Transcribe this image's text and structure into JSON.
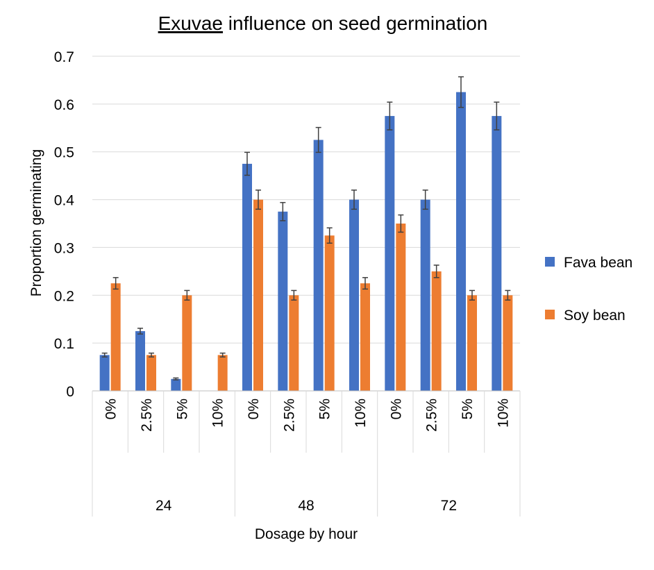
{
  "chart_data": {
    "type": "bar",
    "title": "Exuvae influence on seed germination",
    "title_misspelled_word": "Exuvae",
    "title_rest": " influence on seed germination",
    "xlabel": "Dosage by hour",
    "ylabel": "Proportion germinating",
    "ylim": [
      0,
      0.7
    ],
    "yticks": [
      "0",
      "0.1",
      "0.2",
      "0.3",
      "0.4",
      "0.5",
      "0.6",
      "0.7"
    ],
    "grid": true,
    "legend_position": "right",
    "categories": [
      "0%",
      "2.5%",
      "5%",
      "10%",
      "0%",
      "2.5%",
      "5%",
      "10%",
      "0%",
      "2.5%",
      "5%",
      "10%"
    ],
    "groups": [
      {
        "label": "24",
        "count": 4
      },
      {
        "label": "48",
        "count": 4
      },
      {
        "label": "72",
        "count": 4
      }
    ],
    "series": [
      {
        "name": "Fava bean",
        "color": "#4472C4",
        "values": [
          0.075,
          0.125,
          0.025,
          0,
          0.475,
          0.375,
          0.525,
          0.4,
          0.575,
          0.4,
          0.625,
          0.575
        ],
        "errors": [
          0.004,
          0.006,
          0.002,
          0,
          0.024,
          0.019,
          0.026,
          0.02,
          0.029,
          0.02,
          0.032,
          0.029
        ]
      },
      {
        "name": "Soy bean",
        "color": "#ED7D31",
        "values": [
          0.225,
          0.075,
          0.2,
          0.075,
          0.4,
          0.2,
          0.325,
          0.225,
          0.35,
          0.25,
          0.2,
          0.2
        ],
        "errors": [
          0.012,
          0.004,
          0.01,
          0.004,
          0.02,
          0.01,
          0.016,
          0.012,
          0.018,
          0.013,
          0.01,
          0.01
        ]
      }
    ]
  }
}
